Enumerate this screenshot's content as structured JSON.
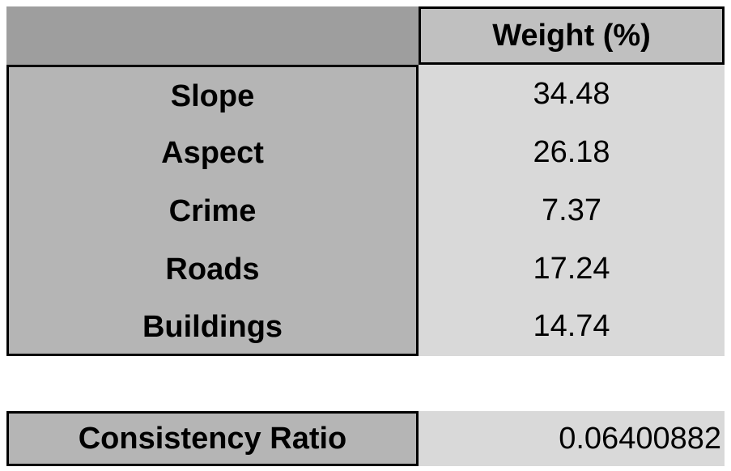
{
  "table": {
    "header": {
      "weight_label": "Weight (%)"
    },
    "rows": [
      {
        "label": "Slope",
        "value": "34.48"
      },
      {
        "label": "Aspect",
        "value": "26.18"
      },
      {
        "label": "Crime",
        "value": "7.37"
      },
      {
        "label": "Roads",
        "value": "17.24"
      },
      {
        "label": "Buildings",
        "value": "14.74"
      }
    ]
  },
  "consistency": {
    "label": "Consistency Ratio",
    "value": "0.06400882"
  },
  "colors": {
    "header_blank": "#9e9e9e",
    "header_weight": "#c0c0c0",
    "label_cells": "#b5b5b5",
    "value_cells": "#d9d9d9",
    "border": "#000000"
  }
}
